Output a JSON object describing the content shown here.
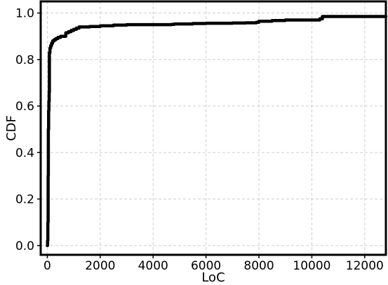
{
  "chart_data": {
    "type": "line",
    "title": "",
    "xlabel": "LoC",
    "ylabel": "CDF",
    "xlim": [
      -250,
      12800
    ],
    "ylim": [
      -0.04,
      1.05
    ],
    "grid": true,
    "xticks": [
      0,
      2000,
      4000,
      6000,
      8000,
      10000,
      12000
    ],
    "yticks": [
      0.0,
      0.2,
      0.4,
      0.6,
      0.8,
      1.0
    ],
    "xtick_labels": [
      "0",
      "2000",
      "4000",
      "6000",
      "8000",
      "10000",
      "12000"
    ],
    "ytick_labels": [
      "0.0",
      "0.2",
      "0.4",
      "0.6",
      "0.8",
      "1.0"
    ],
    "series": [
      {
        "name": "CDF",
        "color": "#000000",
        "x": [
          0,
          10,
          20,
          30,
          40,
          50,
          60,
          70,
          80,
          100,
          130,
          160,
          200,
          260,
          320,
          400,
          500,
          600,
          680,
          700,
          800,
          900,
          1000,
          1100,
          1200,
          1400,
          1600,
          2000,
          2500,
          3000,
          4000,
          4700,
          4800,
          5500,
          6000,
          7000,
          7500,
          7900,
          8000,
          8500,
          9000,
          10300,
          10400,
          11000,
          12000,
          12800
        ],
        "y": [
          0.0,
          0.02,
          0.1,
          0.3,
          0.5,
          0.58,
          0.62,
          0.66,
          0.83,
          0.85,
          0.86,
          0.87,
          0.88,
          0.885,
          0.89,
          0.895,
          0.9,
          0.9,
          0.9,
          0.915,
          0.92,
          0.925,
          0.93,
          0.935,
          0.94,
          0.94,
          0.942,
          0.945,
          0.948,
          0.95,
          0.95,
          0.951,
          0.953,
          0.955,
          0.956,
          0.957,
          0.958,
          0.96,
          0.965,
          0.968,
          0.97,
          0.975,
          0.985,
          0.985,
          0.985,
          0.985
        ]
      }
    ]
  }
}
